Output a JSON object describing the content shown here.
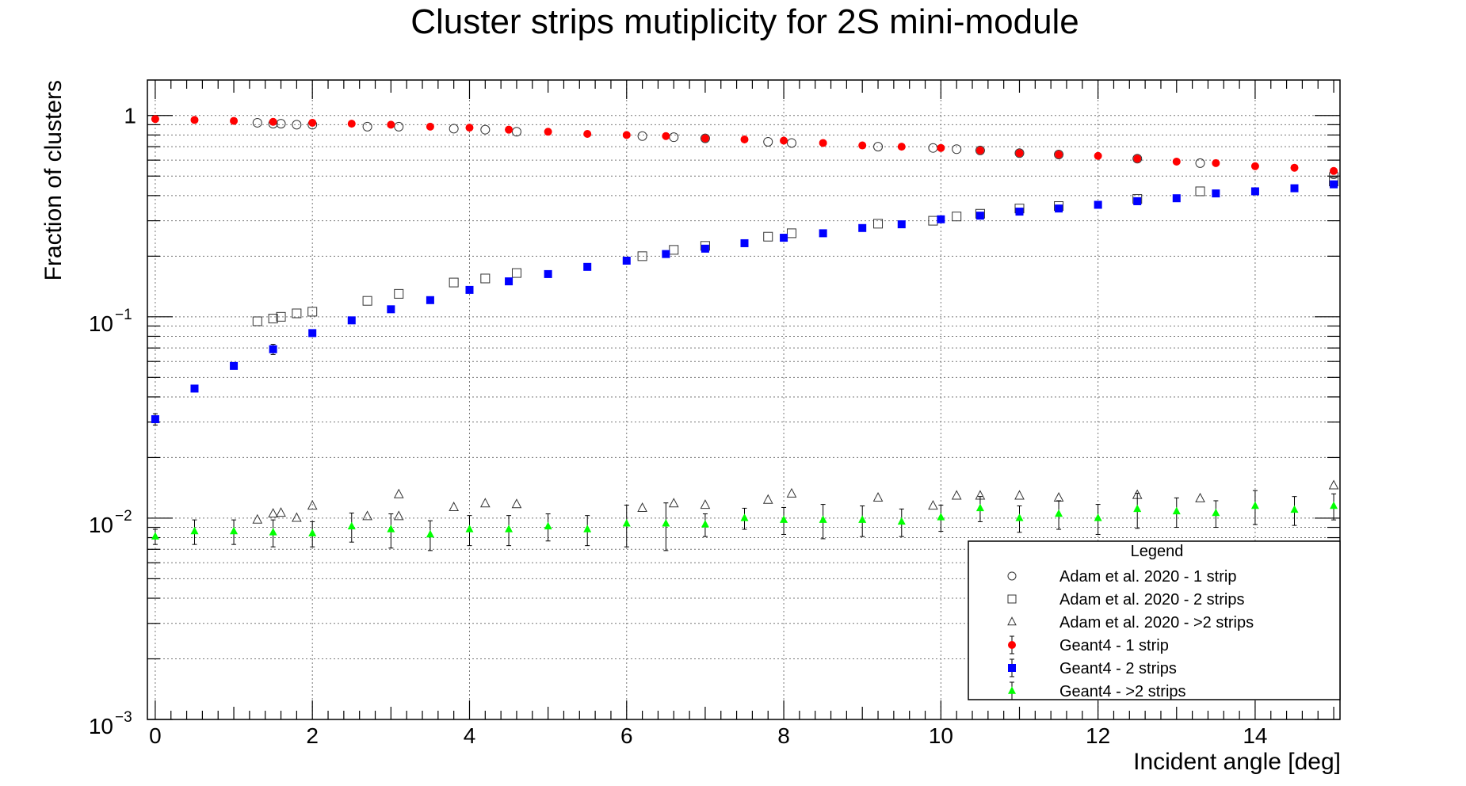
{
  "chart_data": {
    "type": "scatter",
    "title": "Cluster strips mutiplicity for 2S mini-module",
    "xlabel": "Incident angle [deg]",
    "ylabel": "Fraction of clusters",
    "xlim": [
      -0.1,
      15.08
    ],
    "ylim": [
      0.001,
      1.5
    ],
    "yscale": "log",
    "grid": true,
    "x_ticks": [
      "0",
      "2",
      "4",
      "6",
      "8",
      "10",
      "12",
      "14"
    ],
    "y_ticks": [
      {
        "value": 1,
        "base": "1",
        "exp": ""
      },
      {
        "value": 0.1,
        "base": "10",
        "exp": "−1"
      },
      {
        "value": 0.01,
        "base": "10",
        "exp": "−2"
      },
      {
        "value": 0.001,
        "base": "10",
        "exp": "−3"
      }
    ],
    "legend": {
      "title": "Legend",
      "position": "bottom-right"
    },
    "series": [
      {
        "name": "Adam et al. 2020 - 1 strip",
        "marker": "circle-open",
        "color": "#333333",
        "x": [
          1.3,
          1.5,
          1.6,
          1.8,
          2.0,
          2.7,
          3.1,
          3.8,
          4.2,
          4.6,
          6.2,
          6.6,
          7.0,
          7.8,
          8.1,
          9.2,
          9.9,
          10.2,
          10.5,
          11.0,
          11.5,
          12.5,
          13.3,
          15.0
        ],
        "y": [
          0.92,
          0.91,
          0.91,
          0.9,
          0.9,
          0.88,
          0.88,
          0.86,
          0.85,
          0.83,
          0.79,
          0.78,
          0.77,
          0.74,
          0.73,
          0.7,
          0.69,
          0.68,
          0.67,
          0.65,
          0.64,
          0.61,
          0.58,
          0.51
        ]
      },
      {
        "name": "Adam et al. 2020 - 2 strips",
        "marker": "square-open",
        "color": "#333333",
        "x": [
          1.3,
          1.5,
          1.6,
          1.8,
          2.0,
          2.7,
          3.1,
          3.8,
          4.2,
          4.6,
          6.2,
          6.6,
          7.0,
          7.8,
          8.1,
          9.2,
          9.9,
          10.2,
          10.5,
          11.0,
          11.5,
          12.5,
          13.3,
          15.0
        ],
        "y": [
          0.095,
          0.098,
          0.1,
          0.104,
          0.106,
          0.12,
          0.13,
          0.148,
          0.155,
          0.165,
          0.2,
          0.215,
          0.225,
          0.25,
          0.26,
          0.29,
          0.3,
          0.315,
          0.325,
          0.345,
          0.355,
          0.385,
          0.42,
          0.47
        ]
      },
      {
        "name": "Adam et al. 2020 - >2 strips",
        "marker": "triangle-open",
        "color": "#333333",
        "x": [
          1.3,
          1.5,
          1.6,
          1.8,
          2.0,
          2.7,
          3.1,
          3.1,
          3.8,
          4.2,
          4.6,
          6.2,
          6.6,
          7.0,
          7.8,
          8.1,
          9.2,
          9.9,
          10.2,
          10.5,
          11.0,
          11.5,
          12.5,
          13.3,
          15.0
        ],
        "y": [
          0.0098,
          0.0105,
          0.0106,
          0.01,
          0.0115,
          0.0102,
          0.0102,
          0.0131,
          0.0113,
          0.0118,
          0.0117,
          0.0112,
          0.0118,
          0.0116,
          0.0123,
          0.0132,
          0.0126,
          0.0115,
          0.0129,
          0.0129,
          0.0129,
          0.0126,
          0.013,
          0.0125,
          0.0145
        ]
      },
      {
        "name": "Geant4 - 1 strip",
        "marker": "circle-filled",
        "color": "#ff0000",
        "x": [
          0,
          0.5,
          1.0,
          1.5,
          2.0,
          2.5,
          3.0,
          3.5,
          4.0,
          4.5,
          5.0,
          5.5,
          6.0,
          6.5,
          7.0,
          7.5,
          8.0,
          8.5,
          9.0,
          9.5,
          10.0,
          10.5,
          11.0,
          11.5,
          12.0,
          12.5,
          13.0,
          13.5,
          14.0,
          14.5,
          15.0
        ],
        "y": [
          0.96,
          0.95,
          0.94,
          0.93,
          0.92,
          0.91,
          0.9,
          0.88,
          0.87,
          0.85,
          0.83,
          0.81,
          0.8,
          0.79,
          0.77,
          0.76,
          0.75,
          0.73,
          0.71,
          0.7,
          0.69,
          0.67,
          0.65,
          0.64,
          0.63,
          0.61,
          0.59,
          0.58,
          0.56,
          0.55,
          0.53
        ],
        "err": [
          0.01,
          0.01,
          0.01,
          0.01,
          0.01,
          0.01,
          0.01,
          0.01,
          0.01,
          0.01,
          0.01,
          0.01,
          0.01,
          0.01,
          0.01,
          0.01,
          0.01,
          0.01,
          0.01,
          0.01,
          0.01,
          0.01,
          0.01,
          0.01,
          0.01,
          0.01,
          0.01,
          0.01,
          0.01,
          0.01,
          0.01
        ]
      },
      {
        "name": "Geant4 - 2 strips",
        "marker": "square-filled",
        "color": "#0000ff",
        "x": [
          0,
          0.5,
          1.0,
          1.5,
          2.0,
          2.5,
          3.0,
          3.5,
          4.0,
          4.5,
          5.0,
          5.5,
          6.0,
          6.5,
          7.0,
          7.5,
          8.0,
          8.5,
          9.0,
          9.5,
          10.0,
          10.5,
          11.0,
          11.5,
          12.0,
          12.5,
          13.0,
          13.5,
          14.0,
          14.5,
          15.0
        ],
        "y": [
          0.031,
          0.044,
          0.057,
          0.069,
          0.083,
          0.096,
          0.109,
          0.121,
          0.136,
          0.15,
          0.163,
          0.177,
          0.19,
          0.205,
          0.218,
          0.232,
          0.247,
          0.26,
          0.276,
          0.288,
          0.305,
          0.318,
          0.333,
          0.345,
          0.36,
          0.375,
          0.388,
          0.41,
          0.42,
          0.435,
          0.455
        ],
        "err": [
          0.002,
          0.001,
          0.001,
          0.004,
          0.001,
          0.001,
          0.001,
          0.001,
          0.001,
          0.001,
          0.001,
          0.001,
          0.001,
          0.001,
          0.001,
          0.001,
          0.001,
          0.001,
          0.001,
          0.001,
          0.001,
          0.001,
          0.001,
          0.001,
          0.001,
          0.001,
          0.001,
          0.001,
          0.001,
          0.001,
          0.001
        ]
      },
      {
        "name": "Geant4 - >2 strips",
        "marker": "triangle-filled",
        "color": "#00ff00",
        "x": [
          0,
          0.5,
          1.0,
          1.5,
          2.0,
          2.5,
          3.0,
          3.5,
          4.0,
          4.5,
          5.0,
          5.5,
          6.0,
          6.5,
          7.0,
          7.5,
          8.0,
          8.5,
          9.0,
          9.5,
          10.0,
          10.5,
          11.0,
          11.5,
          12.0,
          12.5,
          13.0,
          13.5,
          14.0,
          14.5,
          15.0
        ],
        "y": [
          0.0081,
          0.0086,
          0.0086,
          0.0085,
          0.0084,
          0.0091,
          0.0088,
          0.0083,
          0.0088,
          0.0088,
          0.0091,
          0.0088,
          0.0094,
          0.0094,
          0.0093,
          0.01,
          0.0098,
          0.0098,
          0.0098,
          0.0096,
          0.0101,
          0.0112,
          0.01,
          0.0105,
          0.01,
          0.0111,
          0.0108,
          0.0106,
          0.0115,
          0.011,
          0.0115
        ],
        "err": [
          0.0007,
          0.0012,
          0.0012,
          0.0013,
          0.0012,
          0.0015,
          0.0017,
          0.0014,
          0.0015,
          0.0015,
          0.0014,
          0.0015,
          0.0022,
          0.0025,
          0.0012,
          0.0012,
          0.0015,
          0.0019,
          0.0017,
          0.0015,
          0.0015,
          0.0016,
          0.0015,
          0.0017,
          0.0017,
          0.0022,
          0.0018,
          0.0016,
          0.0022,
          0.0018,
          0.0017
        ]
      }
    ]
  }
}
